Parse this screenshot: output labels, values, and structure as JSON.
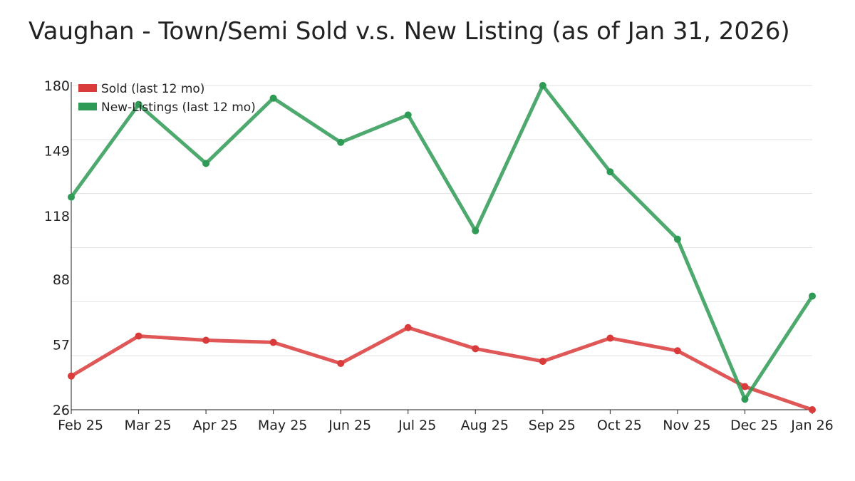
{
  "chart_data": {
    "type": "line",
    "title": "Vaughan - Town/Semi Sold v.s. New Listing (as of Jan 31, 2026)",
    "xlabel": "",
    "ylabel": "",
    "categories": [
      "Feb 25",
      "Mar 25",
      "Apr 25",
      "May 25",
      "Jun 25",
      "Jul 25",
      "Aug 25",
      "Sep 25",
      "Oct 25",
      "Nov 25",
      "Dec 25",
      "Jan 26"
    ],
    "ylim": [
      26,
      180
    ],
    "yticks": [
      "26",
      "57",
      "88",
      "118",
      "149",
      "180"
    ],
    "grid": true,
    "legend_position": "top-left",
    "series": [
      {
        "name": "Sold (last 12 mo)",
        "color": "#d93a3a",
        "values": [
          42,
          61,
          59,
          58,
          48,
          65,
          55,
          49,
          60,
          54,
          37,
          26
        ]
      },
      {
        "name": "New-Listings (last 12 mo)",
        "color": "#2e9a55",
        "values": [
          127,
          171,
          143,
          174,
          153,
          166,
          111,
          180,
          139,
          107,
          31,
          80
        ]
      }
    ]
  }
}
